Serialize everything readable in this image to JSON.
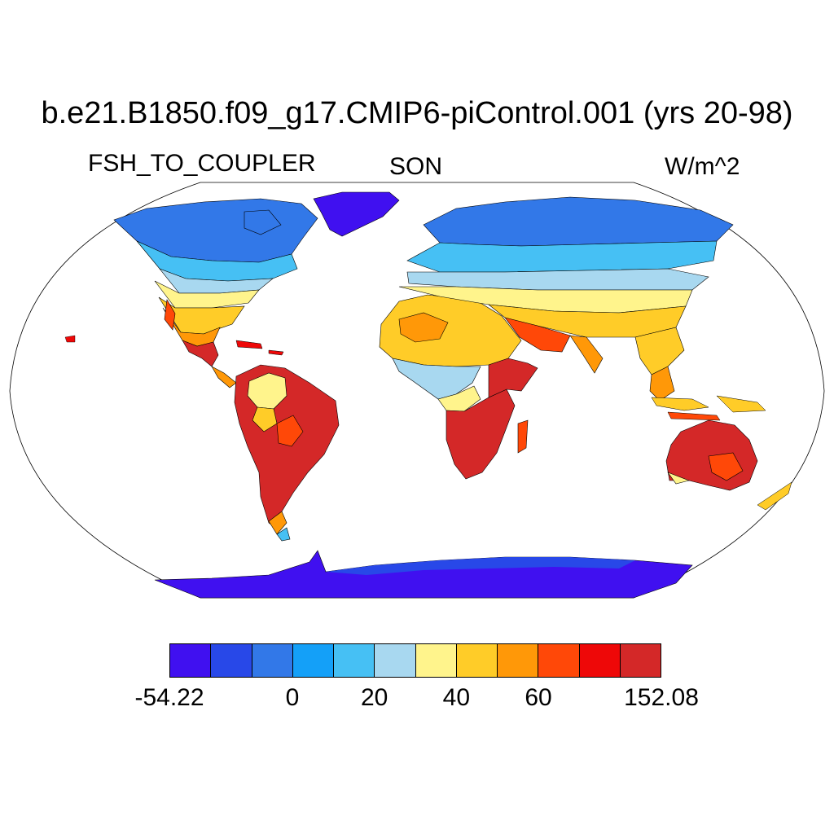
{
  "title": "b.e21.B1850.f09_g17.CMIP6-piControl.001 (yrs 20-98)",
  "variable": "FSH_TO_COUPLER",
  "season": "SON",
  "units": "W/m^2",
  "colorbar": {
    "colors": [
      "#4010f0",
      "#2848e8",
      "#3278e8",
      "#14a0f8",
      "#46c0f4",
      "#a8d8f0",
      "#fff48c",
      "#ffcc28",
      "#ff9808",
      "#ff4808",
      "#ee0808",
      "#d42828"
    ],
    "tick_labels": [
      {
        "label": "-54.22",
        "boundary": 0
      },
      {
        "label": "0",
        "boundary": 3
      },
      {
        "label": "20",
        "boundary": 5
      },
      {
        "label": "40",
        "boundary": 7
      },
      {
        "label": "60",
        "boundary": 9
      },
      {
        "label": "152.08",
        "boundary": 12
      }
    ]
  }
}
